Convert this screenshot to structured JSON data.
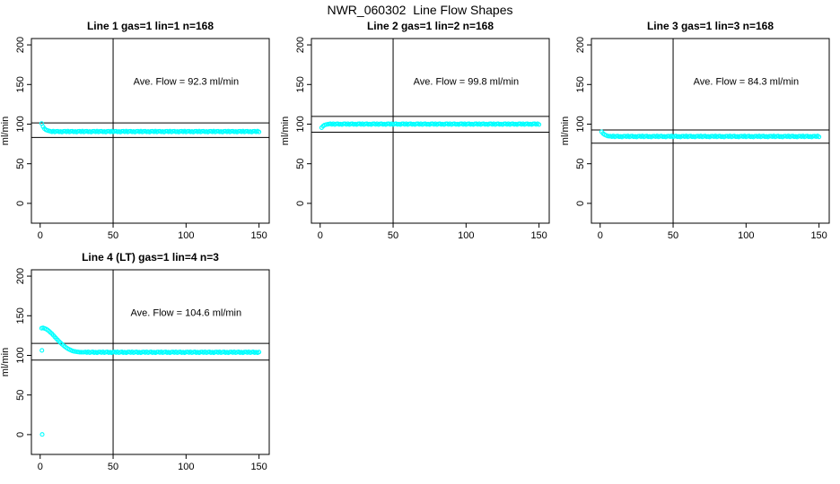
{
  "figure": {
    "title": "NWR_060302  Line Flow Shapes"
  },
  "colors": {
    "marker": "#00ffff",
    "line": "#000000",
    "text": "#000000",
    "background": "#ffffff"
  },
  "chart_data": [
    {
      "id": "line-1",
      "type": "scatter",
      "title": "Line 1 gas=1 lin=1 n=168",
      "annotation": "Ave. Flow = 92.3  ml/min",
      "ave_flow_ml_min": 92.3,
      "n": 168,
      "ylabel": "ml/min",
      "xlim": [
        -6,
        157
      ],
      "ylim": [
        -25,
        208
      ],
      "xticks": [
        0,
        50,
        100,
        150
      ],
      "yticks": [
        0,
        50,
        100,
        150,
        200
      ],
      "vline_x": 50,
      "hlines": [
        101.5,
        83.1
      ],
      "annotation_pos": {
        "x": 100,
        "y": 150
      },
      "series": [
        {
          "name": "flow-trace",
          "x0": 1,
          "dx": 1,
          "y": [
            100.8,
            96.8,
            94.2,
            92.8,
            91.9,
            91.4,
            91.0,
            90.3,
            91.2,
            90.1,
            90.8,
            91.1,
            90.2,
            90.7,
            90.0,
            90.9,
            91.0,
            90.3,
            91.2,
            90.1,
            90.8,
            91.1,
            90.2,
            90.7,
            90.0,
            90.9,
            91.0,
            90.3,
            91.2,
            90.1,
            90.8,
            91.1,
            90.2,
            90.7,
            90.0,
            90.9,
            91.0,
            90.3,
            91.2,
            90.1,
            90.8,
            91.1,
            90.2,
            90.7,
            90.0,
            90.9,
            91.0,
            90.3,
            91.2,
            90.1,
            90.8,
            91.1,
            90.2,
            90.7,
            90.0,
            90.9,
            91.0,
            90.3,
            91.2,
            90.1,
            90.8,
            91.1,
            90.2,
            90.7,
            90.0,
            90.9,
            91.0,
            90.3,
            91.2,
            90.1,
            90.8,
            91.1,
            90.2,
            90.7,
            90.0,
            90.9,
            91.0,
            90.3,
            91.2,
            90.1,
            90.8,
            91.1,
            90.2,
            90.7,
            90.0,
            90.9,
            91.0,
            90.3,
            91.2,
            90.1,
            90.8,
            91.1,
            90.2,
            90.7,
            90.0,
            90.9,
            91.0,
            90.3,
            91.2,
            90.1,
            90.8,
            91.1,
            90.2,
            90.7,
            90.0,
            90.9,
            91.0,
            90.3,
            91.2,
            90.1,
            90.8,
            91.1,
            90.2,
            90.7,
            90.0,
            90.9,
            91.0,
            90.3,
            91.2,
            90.1,
            90.8,
            91.1,
            90.2,
            90.7,
            90.0,
            90.9,
            91.0,
            90.3,
            91.2,
            90.1,
            90.8,
            91.1,
            90.2,
            90.7,
            90.0,
            90.9,
            91.0,
            90.3,
            91.2,
            90.1,
            90.8,
            91.1,
            90.2,
            90.7,
            90.0,
            90.9,
            91.0,
            90.3,
            91.2,
            90.1
          ]
        }
      ]
    },
    {
      "id": "line-2",
      "type": "scatter",
      "title": "Line 2 gas=1 lin=2 n=168",
      "annotation": "Ave. Flow = 99.8  ml/min",
      "ave_flow_ml_min": 99.8,
      "n": 168,
      "ylabel": "ml/min",
      "xlim": [
        -6,
        157
      ],
      "ylim": [
        -25,
        208
      ],
      "xticks": [
        0,
        50,
        100,
        150
      ],
      "yticks": [
        0,
        50,
        100,
        150,
        200
      ],
      "vline_x": 50,
      "hlines": [
        109.8,
        89.8
      ],
      "annotation_pos": {
        "x": 100,
        "y": 150
      },
      "series": [
        {
          "name": "flow-trace",
          "x0": 1,
          "dx": 1,
          "y": [
            95.6,
            97.5,
            98.7,
            99.4,
            99.8,
            100.1,
            100.4,
            99.7,
            100.6,
            99.5,
            100.2,
            100.5,
            99.6,
            100.1,
            99.4,
            100.3,
            100.4,
            99.7,
            100.6,
            99.5,
            100.2,
            100.5,
            99.6,
            100.1,
            99.4,
            100.3,
            100.4,
            99.7,
            100.6,
            99.5,
            100.2,
            100.5,
            99.6,
            100.1,
            99.4,
            100.3,
            100.4,
            99.7,
            100.6,
            99.5,
            100.2,
            100.5,
            99.6,
            100.1,
            99.4,
            100.3,
            100.4,
            99.7,
            100.6,
            99.5,
            100.2,
            100.5,
            99.6,
            100.1,
            99.4,
            100.3,
            100.4,
            99.7,
            100.6,
            99.5,
            100.2,
            100.5,
            99.6,
            100.1,
            99.4,
            100.3,
            100.4,
            99.7,
            100.6,
            99.5,
            100.2,
            100.5,
            99.6,
            100.1,
            99.4,
            100.3,
            100.4,
            99.7,
            100.6,
            99.5,
            100.2,
            100.5,
            99.6,
            100.1,
            99.4,
            100.3,
            100.4,
            99.7,
            100.6,
            99.5,
            100.2,
            100.5,
            99.6,
            100.1,
            99.4,
            100.3,
            100.4,
            99.7,
            100.6,
            99.5,
            100.2,
            100.5,
            99.6,
            100.1,
            99.4,
            100.3,
            100.4,
            99.7,
            100.6,
            99.5,
            100.2,
            100.5,
            99.6,
            100.1,
            99.4,
            100.3,
            100.4,
            99.7,
            100.6,
            99.5,
            100.2,
            100.5,
            99.6,
            100.1,
            99.4,
            100.3,
            100.4,
            99.7,
            100.6,
            99.5,
            100.2,
            100.5,
            99.6,
            100.1,
            99.4,
            100.3,
            100.4,
            99.7,
            100.6,
            99.5,
            100.2,
            100.5,
            99.6,
            100.1,
            99.4,
            100.3,
            100.4,
            99.7,
            100.6,
            99.5
          ]
        }
      ]
    },
    {
      "id": "line-3",
      "type": "scatter",
      "title": "Line 3 gas=1 lin=3 n=168",
      "annotation": "Ave. Flow = 84.3  ml/min",
      "ave_flow_ml_min": 84.3,
      "n": 168,
      "ylabel": "ml/min",
      "xlim": [
        -6,
        157
      ],
      "ylim": [
        -25,
        208
      ],
      "xticks": [
        0,
        50,
        100,
        150
      ],
      "yticks": [
        0,
        50,
        100,
        150,
        200
      ],
      "vline_x": 50,
      "hlines": [
        92.7,
        75.9
      ],
      "annotation_pos": {
        "x": 100,
        "y": 150
      },
      "series": [
        {
          "name": "flow-trace",
          "x0": 1,
          "dx": 1,
          "y": [
            90.3,
            88.2,
            86.8,
            85.8,
            85.1,
            84.7,
            84.8,
            84.1,
            85.0,
            83.9,
            84.6,
            84.9,
            84.0,
            84.5,
            83.8,
            84.7,
            84.8,
            84.1,
            85.0,
            83.9,
            84.6,
            84.9,
            84.0,
            84.5,
            83.8,
            84.7,
            84.8,
            84.1,
            85.0,
            83.9,
            84.6,
            84.9,
            84.0,
            84.5,
            83.8,
            84.7,
            84.8,
            84.1,
            85.0,
            83.9,
            84.6,
            84.9,
            84.0,
            84.5,
            83.8,
            84.7,
            84.8,
            84.1,
            85.0,
            83.9,
            84.6,
            84.9,
            84.0,
            84.5,
            83.8,
            84.7,
            84.8,
            84.1,
            85.0,
            83.9,
            84.6,
            84.9,
            84.0,
            84.5,
            83.8,
            84.7,
            84.8,
            84.1,
            85.0,
            83.9,
            84.6,
            84.9,
            84.0,
            84.5,
            83.8,
            84.7,
            84.8,
            84.1,
            85.0,
            83.9,
            84.6,
            84.9,
            84.0,
            84.5,
            83.8,
            84.7,
            84.8,
            84.1,
            85.0,
            83.9,
            84.6,
            84.9,
            84.0,
            84.5,
            83.8,
            84.7,
            84.8,
            84.1,
            85.0,
            83.9,
            84.6,
            84.9,
            84.0,
            84.5,
            83.8,
            84.7,
            84.8,
            84.1,
            85.0,
            83.9,
            84.6,
            84.9,
            84.0,
            84.5,
            83.8,
            84.7,
            84.8,
            84.1,
            85.0,
            83.9,
            84.6,
            84.9,
            84.0,
            84.5,
            83.8,
            84.7,
            84.8,
            84.1,
            85.0,
            83.9,
            84.6,
            84.9,
            84.0,
            84.5,
            83.8,
            84.7,
            84.8,
            84.1,
            85.0,
            83.9,
            84.6,
            84.9,
            84.0,
            84.5,
            83.8,
            84.7,
            84.8,
            84.1,
            85.0,
            83.9
          ]
        }
      ]
    },
    {
      "id": "line-4",
      "type": "scatter",
      "title": "Line 4 (LT) gas=1 lin=4 n=3",
      "annotation": "Ave. Flow = 104.6  ml/min",
      "ave_flow_ml_min": 104.6,
      "n": 3,
      "ylabel": "ml/min",
      "xlim": [
        -6,
        157
      ],
      "ylim": [
        -25,
        208
      ],
      "xticks": [
        0,
        50,
        100,
        150
      ],
      "yticks": [
        0,
        50,
        100,
        150,
        200
      ],
      "vline_x": 50,
      "hlines": [
        115.1,
        94.1
      ],
      "annotation_pos": {
        "x": 100,
        "y": 150
      },
      "series": [
        {
          "name": "flow-trace",
          "x0": 1,
          "dx": 1,
          "y": [
            134.3,
            134.7,
            134.0,
            133.2,
            132.1,
            130.7,
            129.1,
            127.3,
            125.4,
            123.4,
            121.4,
            119.4,
            117.5,
            115.7,
            114.0,
            112.4,
            110.9,
            109.6,
            108.4,
            107.4,
            106.5,
            105.8,
            105.2,
            104.8,
            104.5,
            104.3,
            104.1,
            104.0,
            103.9,
            103.9,
            104.3,
            103.6,
            104.5,
            103.4,
            104.1,
            104.4,
            103.5,
            104.0,
            103.3,
            104.2,
            104.3,
            103.6,
            104.5,
            103.4,
            104.1,
            104.4,
            103.5,
            104.0,
            103.3,
            104.2,
            104.3,
            103.6,
            104.5,
            103.4,
            104.1,
            104.4,
            103.5,
            104.0,
            103.3,
            104.2,
            104.3,
            103.6,
            104.5,
            103.4,
            104.1,
            104.4,
            103.5,
            104.0,
            103.3,
            104.2,
            104.3,
            103.6,
            104.5,
            103.4,
            104.1,
            104.4,
            103.5,
            104.0,
            103.3,
            104.2,
            104.3,
            103.6,
            104.5,
            103.4,
            104.1,
            104.4,
            103.5,
            104.0,
            103.3,
            104.2,
            104.3,
            103.6,
            104.5,
            103.4,
            104.1,
            104.4,
            103.5,
            104.0,
            103.3,
            104.2,
            104.3,
            103.6,
            104.5,
            103.4,
            104.1,
            104.4,
            103.5,
            104.0,
            103.3,
            104.2,
            104.3,
            103.6,
            104.5,
            103.4,
            104.1,
            104.4,
            103.5,
            104.0,
            103.3,
            104.2,
            104.3,
            103.6,
            104.5,
            103.4,
            104.1,
            104.4,
            103.5,
            104.0,
            103.3,
            104.2,
            104.3,
            103.6,
            104.5,
            103.4,
            104.1,
            104.4,
            103.5,
            104.0,
            103.3,
            104.2,
            104.3,
            103.6,
            104.5,
            103.4,
            104.1,
            104.4,
            103.5,
            104.0,
            103.3,
            104.2
          ]
        },
        {
          "name": "start-point-high",
          "x": [
            1.2
          ],
          "y": [
            106.3
          ]
        },
        {
          "name": "start-point-zero",
          "x": [
            1.4
          ],
          "y": [
            0.2
          ]
        }
      ]
    }
  ]
}
